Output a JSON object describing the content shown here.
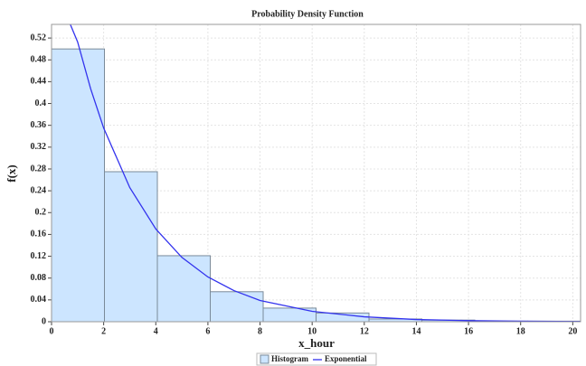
{
  "chart_data": {
    "type": "histogram",
    "title": "Probability Density Function",
    "x_label": "x_hour",
    "y_label": "f(x)",
    "xlim": [
      0,
      20.3
    ],
    "ylim": [
      0,
      0.545
    ],
    "xticks": [
      0,
      2,
      4,
      6,
      8,
      10,
      12,
      14,
      16,
      18,
      20
    ],
    "yticks": [
      0,
      0.04,
      0.08,
      0.12,
      0.16,
      0.2,
      0.24,
      0.28,
      0.32,
      0.36,
      0.4,
      0.44,
      0.48,
      0.52
    ],
    "grid": true,
    "legend": "bottom",
    "series": [
      {
        "name": "Histogram",
        "type": "histogram",
        "color": "#cce5ff",
        "edge_color": "#7a8a99",
        "bins": [
          0,
          2.03,
          4.06,
          6.09,
          8.12,
          10.15,
          12.18,
          14.21,
          16.24,
          18.27,
          20.3
        ],
        "values": [
          0.5,
          0.275,
          0.121,
          0.055,
          0.025,
          0.016,
          0.005,
          0.003,
          0.001,
          0.001
        ]
      },
      {
        "name": "Exponential",
        "type": "line",
        "color": "#3333ee",
        "x": [
          0.72,
          1,
          1.5,
          2,
          3,
          4,
          5,
          6,
          7,
          8,
          10,
          12,
          14,
          16,
          18,
          20.3
        ],
        "values": [
          0.545,
          0.513,
          0.427,
          0.355,
          0.246,
          0.17,
          0.118,
          0.082,
          0.057,
          0.039,
          0.019,
          0.009,
          0.004,
          0.002,
          0.001,
          0.0004
        ]
      }
    ]
  }
}
